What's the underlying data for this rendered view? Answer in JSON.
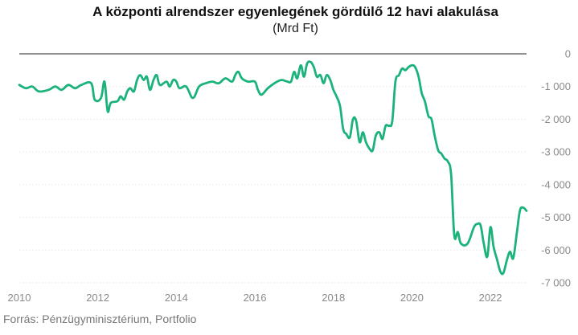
{
  "chart_data": {
    "type": "line",
    "title": "A központi alrendszer egyenlegének gördülő 12 havi alakulása",
    "subtitle": "(Mrd Ft)",
    "xlabel": "",
    "ylabel": "",
    "xlim": [
      2010,
      2022.92
    ],
    "ylim": [
      -7000,
      0
    ],
    "x_ticks": [
      2010,
      2012,
      2014,
      2016,
      2018,
      2020,
      2022
    ],
    "y_ticks": [
      0,
      -1000,
      -2000,
      -3000,
      -4000,
      -5000,
      -6000,
      -7000
    ],
    "y_tick_labels": [
      "0",
      "-1 000",
      "-2 000",
      "-3 000",
      "-4 000",
      "-5 000",
      "-6 000",
      "-7 000"
    ],
    "grid": "horizontal",
    "y_axis_position": "right",
    "color": "#1cb27b",
    "series": [
      {
        "values": [
          [
            2010.0,
            -950
          ],
          [
            2010.17,
            -1050
          ],
          [
            2010.33,
            -1000
          ],
          [
            2010.5,
            -1150
          ],
          [
            2010.75,
            -1100
          ],
          [
            2010.92,
            -1000
          ],
          [
            2011.08,
            -1100
          ],
          [
            2011.25,
            -950
          ],
          [
            2011.42,
            -1050
          ],
          [
            2011.58,
            -950
          ],
          [
            2011.83,
            -900
          ],
          [
            2011.92,
            -1400
          ],
          [
            2012.08,
            -1350
          ],
          [
            2012.17,
            -850
          ],
          [
            2012.25,
            -1750
          ],
          [
            2012.33,
            -1500
          ],
          [
            2012.5,
            -1450
          ],
          [
            2012.58,
            -1300
          ],
          [
            2012.67,
            -1400
          ],
          [
            2012.75,
            -1150
          ],
          [
            2012.83,
            -1050
          ],
          [
            2012.92,
            -1150
          ],
          [
            2013.0,
            -800
          ],
          [
            2013.08,
            -650
          ],
          [
            2013.17,
            -800
          ],
          [
            2013.25,
            -700
          ],
          [
            2013.33,
            -1100
          ],
          [
            2013.42,
            -800
          ],
          [
            2013.5,
            -650
          ],
          [
            2013.58,
            -950
          ],
          [
            2013.75,
            -850
          ],
          [
            2013.83,
            -1000
          ],
          [
            2013.92,
            -800
          ],
          [
            2014.0,
            -850
          ],
          [
            2014.08,
            -1050
          ],
          [
            2014.25,
            -1000
          ],
          [
            2014.42,
            -1350
          ],
          [
            2014.58,
            -1000
          ],
          [
            2014.75,
            -900
          ],
          [
            2014.92,
            -850
          ],
          [
            2015.08,
            -900
          ],
          [
            2015.25,
            -750
          ],
          [
            2015.42,
            -850
          ],
          [
            2015.5,
            -650
          ],
          [
            2015.58,
            -550
          ],
          [
            2015.67,
            -750
          ],
          [
            2015.83,
            -850
          ],
          [
            2016.0,
            -850
          ],
          [
            2016.08,
            -1100
          ],
          [
            2016.17,
            -1250
          ],
          [
            2016.33,
            -1050
          ],
          [
            2016.5,
            -900
          ],
          [
            2016.67,
            -800
          ],
          [
            2016.83,
            -850
          ],
          [
            2016.92,
            -850
          ],
          [
            2017.0,
            -550
          ],
          [
            2017.08,
            -750
          ],
          [
            2017.17,
            -350
          ],
          [
            2017.25,
            -700
          ],
          [
            2017.33,
            -300
          ],
          [
            2017.42,
            -250
          ],
          [
            2017.5,
            -400
          ],
          [
            2017.58,
            -700
          ],
          [
            2017.67,
            -650
          ],
          [
            2017.75,
            -900
          ],
          [
            2017.83,
            -650
          ],
          [
            2017.92,
            -800
          ],
          [
            2018.0,
            -1100
          ],
          [
            2018.08,
            -1300
          ],
          [
            2018.17,
            -1600
          ],
          [
            2018.25,
            -2300
          ],
          [
            2018.33,
            -2450
          ],
          [
            2018.42,
            -2550
          ],
          [
            2018.5,
            -2000
          ],
          [
            2018.58,
            -2050
          ],
          [
            2018.67,
            -2700
          ],
          [
            2018.75,
            -2400
          ],
          [
            2018.83,
            -2700
          ],
          [
            2018.92,
            -2900
          ],
          [
            2019.0,
            -2950
          ],
          [
            2019.08,
            -2500
          ],
          [
            2019.17,
            -2400
          ],
          [
            2019.25,
            -2600
          ],
          [
            2019.33,
            -2200
          ],
          [
            2019.42,
            -2200
          ],
          [
            2019.5,
            -2050
          ],
          [
            2019.58,
            -850
          ],
          [
            2019.67,
            -650
          ],
          [
            2019.75,
            -450
          ],
          [
            2019.83,
            -500
          ],
          [
            2019.92,
            -400
          ],
          [
            2020.0,
            -350
          ],
          [
            2020.08,
            -400
          ],
          [
            2020.17,
            -700
          ],
          [
            2020.25,
            -1200
          ],
          [
            2020.33,
            -1450
          ],
          [
            2020.42,
            -1900
          ],
          [
            2020.5,
            -2000
          ],
          [
            2020.58,
            -2500
          ],
          [
            2020.67,
            -2950
          ],
          [
            2020.75,
            -3050
          ],
          [
            2020.83,
            -3200
          ],
          [
            2020.92,
            -3300
          ],
          [
            2021.0,
            -3700
          ],
          [
            2021.08,
            -5550
          ],
          [
            2021.17,
            -5450
          ],
          [
            2021.25,
            -5800
          ],
          [
            2021.42,
            -5800
          ],
          [
            2021.58,
            -5300
          ],
          [
            2021.67,
            -5200
          ],
          [
            2021.75,
            -5250
          ],
          [
            2021.83,
            -5800
          ],
          [
            2021.92,
            -6200
          ],
          [
            2022.0,
            -5300
          ],
          [
            2022.08,
            -5900
          ],
          [
            2022.17,
            -6300
          ],
          [
            2022.25,
            -6650
          ],
          [
            2022.33,
            -6700
          ],
          [
            2022.42,
            -6300
          ],
          [
            2022.5,
            -6050
          ],
          [
            2022.58,
            -6250
          ],
          [
            2022.67,
            -5500
          ],
          [
            2022.75,
            -4800
          ],
          [
            2022.83,
            -4700
          ],
          [
            2022.92,
            -4800
          ]
        ]
      }
    ]
  },
  "footer": {
    "source": "Forrás: Pénzügyminisztérium, Portfolio"
  }
}
